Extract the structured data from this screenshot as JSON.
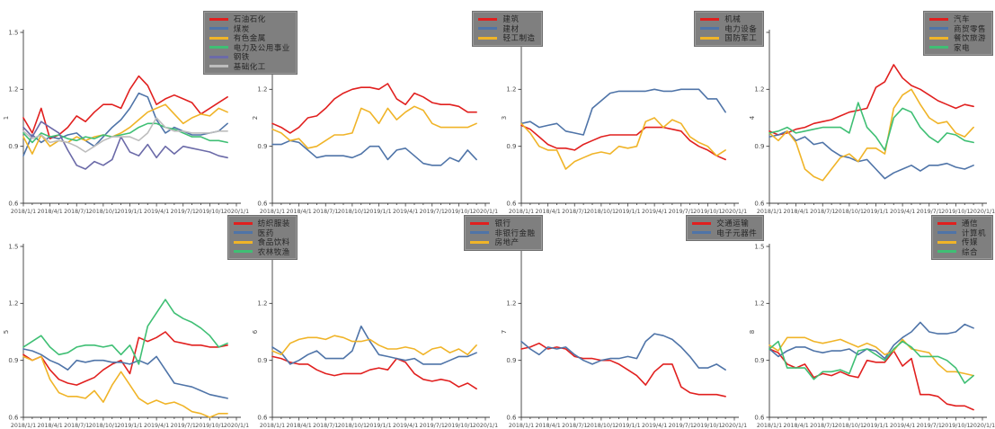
{
  "figure": {
    "background": "#ffffff",
    "axis_color": "#3c3c3c",
    "tick_label_color": "#4a4a4a",
    "legend_bg": "#7f7f7f",
    "grid": false,
    "rows": 2,
    "cols": 4
  },
  "chart_data": [
    {
      "type": "line",
      "ylabel": "1",
      "ylim": [
        0.6,
        1.5
      ],
      "yticks": [
        0.6,
        0.9,
        1.2,
        1.5
      ],
      "xticks": [
        "2018/1/1",
        "2018/4/1",
        "2018/7/1",
        "2018/10/1",
        "2019/1/1",
        "2019/4/1",
        "2019/7/1",
        "2019/10/1",
        "2020/1/1"
      ],
      "legend_position": "top-right",
      "series": [
        {
          "name": "石油石化",
          "color": "#e1201f",
          "values": [
            1.05,
            0.97,
            1.1,
            0.94,
            0.96,
            1.0,
            1.06,
            1.03,
            1.08,
            1.12,
            1.12,
            1.1,
            1.2,
            1.27,
            1.22,
            1.12,
            1.15,
            1.17,
            1.15,
            1.13,
            1.07,
            1.1,
            1.13,
            1.16
          ]
        },
        {
          "name": "煤炭",
          "color": "#4f74a8",
          "values": [
            0.85,
            0.96,
            0.92,
            0.95,
            0.94,
            0.96,
            0.97,
            0.93,
            0.9,
            0.95,
            1.0,
            1.04,
            1.1,
            1.18,
            1.16,
            1.04,
            0.97,
            1.0,
            0.98,
            0.96,
            0.96,
            0.97,
            0.98,
            1.02
          ]
        },
        {
          "name": "有色金属",
          "color": "#f0b428",
          "values": [
            0.95,
            0.86,
            0.96,
            0.9,
            0.93,
            0.92,
            0.95,
            0.93,
            0.95,
            0.96,
            0.95,
            0.97,
            1.0,
            1.04,
            1.08,
            1.1,
            1.12,
            1.07,
            1.02,
            1.05,
            1.07,
            1.06,
            1.1,
            1.08
          ]
        },
        {
          "name": "电力及公用事业",
          "color": "#3fbf74",
          "values": [
            0.97,
            0.92,
            0.97,
            0.95,
            0.96,
            0.94,
            0.93,
            0.95,
            0.94,
            0.96,
            0.95,
            0.96,
            0.97,
            1.0,
            1.02,
            1.02,
            1.0,
            0.99,
            0.97,
            0.95,
            0.95,
            0.93,
            0.93,
            0.92
          ]
        },
        {
          "name": "钢铁",
          "color": "#6b6aa8",
          "values": [
            1.0,
            0.95,
            1.03,
            1.0,
            0.97,
            0.88,
            0.8,
            0.78,
            0.82,
            0.8,
            0.83,
            0.95,
            0.87,
            0.85,
            0.91,
            0.84,
            0.9,
            0.86,
            0.9,
            0.89,
            0.88,
            0.87,
            0.85,
            0.84
          ]
        },
        {
          "name": "基础化工",
          "color": "#bdbdbd",
          "values": [
            0.98,
            0.94,
            0.96,
            0.92,
            0.93,
            0.92,
            0.9,
            0.87,
            0.9,
            0.93,
            0.95,
            0.95,
            0.95,
            0.93,
            0.97,
            1.05,
            1.0,
            0.98,
            0.98,
            0.97,
            0.97,
            0.97,
            0.98,
            0.98
          ]
        }
      ]
    },
    {
      "type": "line",
      "ylabel": "2",
      "ylim": [
        0.6,
        1.5
      ],
      "yticks": [
        0.6,
        0.9,
        1.2,
        1.5
      ],
      "xticks": [
        "2018/1/1",
        "2018/4/1",
        "2018/7/1",
        "2018/10/1",
        "2019/1/1",
        "2019/4/1",
        "2019/7/1",
        "2019/10/1",
        "2020/1/1"
      ],
      "legend_position": "top-right",
      "series": [
        {
          "name": "建筑",
          "color": "#e1201f",
          "values": [
            1.02,
            1.0,
            0.97,
            1.0,
            1.05,
            1.06,
            1.1,
            1.15,
            1.18,
            1.2,
            1.21,
            1.21,
            1.2,
            1.23,
            1.15,
            1.12,
            1.18,
            1.16,
            1.13,
            1.12,
            1.12,
            1.11,
            1.08,
            1.08
          ]
        },
        {
          "name": "建材",
          "color": "#4f74a8",
          "values": [
            0.91,
            0.91,
            0.93,
            0.92,
            0.88,
            0.84,
            0.85,
            0.85,
            0.85,
            0.84,
            0.86,
            0.9,
            0.9,
            0.83,
            0.88,
            0.89,
            0.85,
            0.81,
            0.8,
            0.8,
            0.84,
            0.82,
            0.88,
            0.83
          ]
        },
        {
          "name": "轻工制造",
          "color": "#f0b428",
          "values": [
            0.99,
            0.97,
            0.93,
            0.94,
            0.89,
            0.9,
            0.93,
            0.96,
            0.96,
            0.97,
            1.1,
            1.08,
            1.02,
            1.1,
            1.04,
            1.08,
            1.11,
            1.09,
            1.02,
            1.0,
            1.0,
            1.0,
            1.0,
            1.02
          ]
        }
      ]
    },
    {
      "type": "line",
      "ylabel": "3",
      "ylim": [
        0.6,
        1.5
      ],
      "yticks": [
        0.6,
        0.9,
        1.2,
        1.5
      ],
      "xticks": [
        "2018/1/1",
        "2018/4/1",
        "2018/7/1",
        "2018/10/1",
        "2019/1/1",
        "2019/4/1",
        "2019/7/1",
        "2019/10/1",
        "2020/1/1"
      ],
      "legend_position": "top-right",
      "series": [
        {
          "name": "机械",
          "color": "#e1201f",
          "values": [
            1.01,
            0.99,
            0.95,
            0.91,
            0.89,
            0.89,
            0.88,
            0.91,
            0.93,
            0.95,
            0.96,
            0.96,
            0.96,
            0.96,
            1.0,
            1.0,
            1.0,
            0.99,
            0.98,
            0.93,
            0.9,
            0.88,
            0.85,
            0.83
          ]
        },
        {
          "name": "电力设备",
          "color": "#4f74a8",
          "values": [
            1.02,
            1.03,
            1.0,
            1.01,
            1.02,
            0.98,
            0.97,
            0.96,
            1.1,
            1.14,
            1.18,
            1.19,
            1.19,
            1.19,
            1.19,
            1.2,
            1.19,
            1.19,
            1.2,
            1.2,
            1.2,
            1.15,
            1.15,
            1.08
          ]
        },
        {
          "name": "国防军工",
          "color": "#f0b428",
          "values": [
            1.02,
            0.97,
            0.9,
            0.88,
            0.88,
            0.78,
            0.82,
            0.84,
            0.86,
            0.87,
            0.86,
            0.9,
            0.89,
            0.9,
            1.03,
            1.05,
            1.0,
            1.04,
            1.02,
            0.95,
            0.92,
            0.9,
            0.85,
            0.88
          ]
        }
      ]
    },
    {
      "type": "line",
      "ylabel": "4",
      "ylim": [
        0.6,
        1.5
      ],
      "yticks": [
        0.6,
        0.9,
        1.2,
        1.5
      ],
      "xticks": [
        "2018/1/1",
        "2018/4/1",
        "2018/7/1",
        "2018/10/1",
        "2019/1/1",
        "2019/4/1",
        "2019/7/1",
        "2019/10/1",
        "2020/1/1"
      ],
      "legend_position": "top-right",
      "series": [
        {
          "name": "汽车",
          "color": "#e1201f",
          "values": [
            0.98,
            0.96,
            0.97,
            0.99,
            1.0,
            1.02,
            1.03,
            1.04,
            1.06,
            1.08,
            1.09,
            1.1,
            1.21,
            1.24,
            1.33,
            1.26,
            1.22,
            1.2,
            1.17,
            1.14,
            1.12,
            1.1,
            1.12,
            1.11
          ]
        },
        {
          "name": "商贸零售",
          "color": "#4f74a8",
          "values": [
            0.95,
            0.96,
            0.98,
            0.93,
            0.95,
            0.91,
            0.92,
            0.88,
            0.85,
            0.84,
            0.82,
            0.83,
            0.78,
            0.73,
            0.76,
            0.78,
            0.8,
            0.77,
            0.8,
            0.8,
            0.81,
            0.79,
            0.78,
            0.8
          ]
        },
        {
          "name": "餐饮旅游",
          "color": "#f0b428",
          "values": [
            0.97,
            0.93,
            0.98,
            0.92,
            0.78,
            0.74,
            0.72,
            0.78,
            0.84,
            0.86,
            0.82,
            0.89,
            0.89,
            0.86,
            1.1,
            1.17,
            1.2,
            1.12,
            1.05,
            1.02,
            1.03,
            0.97,
            0.95,
            1.0
          ]
        },
        {
          "name": "家电",
          "color": "#3fbf74",
          "values": [
            0.97,
            0.98,
            1.0,
            0.97,
            0.98,
            0.99,
            1.0,
            1.0,
            1.0,
            0.97,
            1.13,
            1.0,
            0.95,
            0.88,
            1.05,
            1.1,
            1.08,
            1.0,
            0.95,
            0.92,
            0.97,
            0.96,
            0.93,
            0.92
          ]
        }
      ]
    },
    {
      "type": "line",
      "ylabel": "5",
      "ylim": [
        0.6,
        1.5
      ],
      "yticks": [
        0.6,
        0.9,
        1.2,
        1.5
      ],
      "xticks": [
        "2018/1/1",
        "2018/4/1",
        "2018/7/1",
        "2018/10/1",
        "2019/1/1",
        "2019/4/1",
        "2019/7/1",
        "2019/10/1",
        "2020/1/1"
      ],
      "legend_position": "top-right",
      "series": [
        {
          "name": "纺织服装",
          "color": "#e1201f",
          "values": [
            0.93,
            0.9,
            0.92,
            0.85,
            0.8,
            0.78,
            0.77,
            0.79,
            0.81,
            0.85,
            0.88,
            0.9,
            0.83,
            1.02,
            1.0,
            1.02,
            1.05,
            1.0,
            0.99,
            0.98,
            0.98,
            0.97,
            0.97,
            0.98
          ]
        },
        {
          "name": "医药",
          "color": "#4f74a8",
          "values": [
            0.96,
            0.95,
            0.93,
            0.9,
            0.88,
            0.85,
            0.9,
            0.89,
            0.9,
            0.9,
            0.89,
            0.89,
            0.88,
            0.9,
            0.88,
            0.92,
            0.85,
            0.78,
            0.77,
            0.76,
            0.74,
            0.72,
            0.71,
            0.7
          ]
        },
        {
          "name": "食品饮料",
          "color": "#f0b428",
          "values": [
            0.92,
            0.9,
            0.92,
            0.8,
            0.73,
            0.71,
            0.71,
            0.7,
            0.74,
            0.68,
            0.77,
            0.84,
            0.77,
            0.7,
            0.67,
            0.69,
            0.67,
            0.68,
            0.66,
            0.63,
            0.62,
            0.6,
            0.62,
            0.62
          ]
        },
        {
          "name": "农林牧渔",
          "color": "#3fbf74",
          "values": [
            0.97,
            1.0,
            1.03,
            0.97,
            0.93,
            0.94,
            0.97,
            0.98,
            0.98,
            0.97,
            0.98,
            0.93,
            0.98,
            0.88,
            1.08,
            1.15,
            1.22,
            1.15,
            1.12,
            1.1,
            1.07,
            1.03,
            0.97,
            0.99
          ]
        }
      ]
    },
    {
      "type": "line",
      "ylabel": "6",
      "ylim": [
        0.6,
        1.5
      ],
      "yticks": [
        0.6,
        0.9,
        1.2,
        1.5
      ],
      "xticks": [
        "2018/1/1",
        "2018/4/1",
        "2018/7/1",
        "2018/10/1",
        "2019/1/1",
        "2019/4/1",
        "2019/7/1",
        "2019/10/1",
        "2020/1/1"
      ],
      "legend_position": "top-right",
      "series": [
        {
          "name": "银行",
          "color": "#e1201f",
          "values": [
            0.92,
            0.91,
            0.89,
            0.88,
            0.88,
            0.85,
            0.83,
            0.82,
            0.83,
            0.83,
            0.83,
            0.85,
            0.86,
            0.85,
            0.91,
            0.89,
            0.83,
            0.8,
            0.79,
            0.8,
            0.79,
            0.76,
            0.78,
            0.75
          ]
        },
        {
          "name": "非银行金融",
          "color": "#4f74a8",
          "values": [
            0.97,
            0.94,
            0.88,
            0.9,
            0.93,
            0.95,
            0.91,
            0.91,
            0.91,
            0.95,
            1.08,
            1.0,
            0.93,
            0.92,
            0.91,
            0.9,
            0.91,
            0.88,
            0.88,
            0.88,
            0.9,
            0.92,
            0.92,
            0.94
          ]
        },
        {
          "name": "房地产",
          "color": "#f0b428",
          "values": [
            0.95,
            0.93,
            0.99,
            1.01,
            1.02,
            1.02,
            1.01,
            1.03,
            1.02,
            1.0,
            1.0,
            1.01,
            0.98,
            0.96,
            0.96,
            0.97,
            0.96,
            0.93,
            0.96,
            0.97,
            0.94,
            0.96,
            0.93,
            0.98
          ]
        }
      ]
    },
    {
      "type": "line",
      "ylabel": "7",
      "ylim": [
        0.6,
        1.5
      ],
      "yticks": [
        0.6,
        0.9,
        1.2,
        1.5
      ],
      "xticks": [
        "2018/1/1",
        "2018/4/1",
        "2018/7/1",
        "2018/10/1",
        "2019/1/1",
        "2019/4/1",
        "2019/7/1",
        "2019/10/1",
        "2020/1/1"
      ],
      "legend_position": "top-right",
      "series": [
        {
          "name": "交通运输",
          "color": "#e1201f",
          "values": [
            0.96,
            0.97,
            0.99,
            0.96,
            0.97,
            0.96,
            0.92,
            0.91,
            0.91,
            0.9,
            0.9,
            0.88,
            0.85,
            0.82,
            0.77,
            0.84,
            0.88,
            0.88,
            0.76,
            0.73,
            0.72,
            0.72,
            0.72,
            0.71
          ]
        },
        {
          "name": "电子元器件",
          "color": "#4f74a8",
          "values": [
            1.0,
            0.96,
            0.93,
            0.97,
            0.96,
            0.97,
            0.93,
            0.9,
            0.88,
            0.9,
            0.91,
            0.91,
            0.92,
            0.91,
            1.0,
            1.04,
            1.03,
            1.01,
            0.97,
            0.92,
            0.86,
            0.86,
            0.88,
            0.85
          ]
        }
      ]
    },
    {
      "type": "line",
      "ylabel": "8",
      "ylim": [
        0.6,
        1.5
      ],
      "yticks": [
        0.6,
        0.9,
        1.2,
        1.5
      ],
      "xticks": [
        "2018/1/1",
        "2018/4/1",
        "2018/7/1",
        "2018/10/1",
        "2019/1/1",
        "2019/4/1",
        "2019/7/1",
        "2019/10/1",
        "2020/1/1"
      ],
      "legend_position": "top-right",
      "series": [
        {
          "name": "通信",
          "color": "#e1201f",
          "values": [
            0.96,
            0.94,
            0.88,
            0.86,
            0.88,
            0.81,
            0.83,
            0.82,
            0.84,
            0.82,
            0.81,
            0.9,
            0.89,
            0.89,
            0.95,
            0.87,
            0.91,
            0.72,
            0.72,
            0.71,
            0.67,
            0.66,
            0.66,
            0.64
          ]
        },
        {
          "name": "计算机",
          "color": "#4f74a8",
          "values": [
            0.96,
            0.92,
            0.95,
            0.97,
            0.97,
            0.95,
            0.94,
            0.95,
            0.95,
            0.96,
            0.93,
            0.96,
            0.95,
            0.91,
            0.98,
            1.02,
            1.05,
            1.1,
            1.05,
            1.04,
            1.04,
            1.05,
            1.09,
            1.07
          ]
        },
        {
          "name": "传媒",
          "color": "#f0b428",
          "values": [
            0.98,
            0.95,
            1.02,
            1.02,
            1.02,
            1.0,
            0.99,
            1.0,
            1.01,
            0.99,
            0.97,
            0.99,
            0.97,
            0.93,
            0.95,
            1.01,
            0.96,
            0.95,
            0.94,
            0.88,
            0.84,
            0.84,
            0.83,
            0.82
          ]
        },
        {
          "name": "综合",
          "color": "#3fbf74",
          "values": [
            0.96,
            1.0,
            0.86,
            0.86,
            0.86,
            0.8,
            0.84,
            0.84,
            0.85,
            0.83,
            0.95,
            0.96,
            0.93,
            0.9,
            0.96,
            1.0,
            0.97,
            0.92,
            0.92,
            0.92,
            0.9,
            0.86,
            0.78,
            0.82
          ]
        }
      ]
    }
  ]
}
